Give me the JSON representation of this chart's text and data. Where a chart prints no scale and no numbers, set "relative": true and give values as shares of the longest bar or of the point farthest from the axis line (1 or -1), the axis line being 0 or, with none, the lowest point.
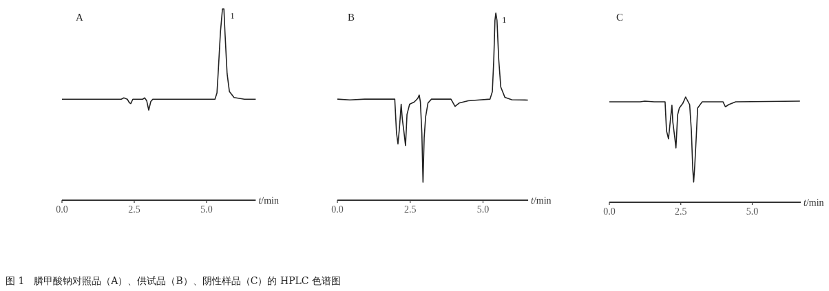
{
  "chart_data": [
    {
      "type": "line",
      "title": "A",
      "relative": true,
      "xlabel": "*t*/min",
      "xlim": [
        0,
        6.7
      ],
      "xticks": [
        {
          "value": 0,
          "label": "0.0"
        },
        {
          "value": 2.5,
          "label": "2.5"
        },
        {
          "value": 5,
          "label": "5.0"
        }
      ],
      "color": "#222222",
      "marker": "none",
      "x": [
        0,
        2.05,
        2.14,
        2.26,
        2.33,
        2.38,
        2.45,
        2.79,
        2.86,
        2.93,
        3.0,
        3.07,
        3.14,
        5.29,
        5.36,
        5.4,
        5.48,
        5.55,
        5.6,
        5.64,
        5.71,
        5.79,
        5.95,
        6.31,
        6.7
      ],
      "values": [
        0.528,
        0.528,
        0.535,
        0.528,
        0.51,
        0.505,
        0.528,
        0.528,
        0.535,
        0.52,
        0.471,
        0.515,
        0.528,
        0.528,
        0.561,
        0.662,
        0.879,
        1.0,
        1.0,
        0.867,
        0.662,
        0.568,
        0.537,
        0.528,
        0.528
      ],
      "annotations": [
        {
          "text": "1",
          "x": 5.6,
          "y": 1.0
        },
        "图 1　膦甲酸钠对照品（A）、供试品（B）、阴性样品（C）的 HPLC 色谱图"
      ]
    },
    {
      "type": "line",
      "title": "B",
      "relative": true,
      "xlabel": "*t*/min",
      "xlim": [
        0,
        6.55
      ],
      "xticks": [
        {
          "value": 0,
          "label": "0.0"
        },
        {
          "value": 2.5,
          "label": "2.5"
        },
        {
          "value": 5,
          "label": "5.0"
        }
      ],
      "color": "#222222",
      "marker": "none",
      "x": [
        0,
        0.43,
        0.94,
        1.97,
        2.03,
        2.08,
        2.13,
        2.19,
        2.23,
        2.28,
        2.34,
        2.39,
        2.48,
        2.64,
        2.76,
        2.81,
        2.85,
        2.9,
        2.94,
        2.98,
        3.03,
        3.11,
        3.23,
        3.9,
        4.04,
        4.18,
        4.49,
        4.8,
        5.24,
        5.32,
        5.37,
        5.41,
        5.44,
        5.48,
        5.54,
        5.61,
        5.75,
        5.99,
        6.54
      ],
      "values": [
        0.54,
        0.536,
        0.54,
        0.54,
        0.36,
        0.301,
        0.384,
        0.513,
        0.433,
        0.372,
        0.292,
        0.458,
        0.513,
        0.525,
        0.544,
        0.562,
        0.525,
        0.36,
        0.096,
        0.335,
        0.445,
        0.519,
        0.54,
        0.54,
        0.501,
        0.519,
        0.531,
        0.535,
        0.54,
        0.58,
        0.752,
        0.961,
        1.0,
        0.961,
        0.752,
        0.605,
        0.55,
        0.537,
        0.535
      ],
      "annotations": [
        {
          "text": "1",
          "x": 5.44,
          "y": 1.0
        }
      ]
    },
    {
      "type": "line",
      "title": "C",
      "relative": true,
      "xlabel": "*t*/min",
      "xlim": [
        0,
        6.7
      ],
      "xticks": [
        {
          "value": 0,
          "label": "0.0"
        },
        {
          "value": 2.5,
          "label": "2.5"
        },
        {
          "value": 5,
          "label": "5.0"
        }
      ],
      "color": "#222222",
      "marker": "none",
      "x": [
        0,
        1.08,
        1.24,
        1.57,
        1.95,
        2.0,
        2.07,
        2.13,
        2.19,
        2.22,
        2.29,
        2.33,
        2.39,
        2.45,
        2.57,
        2.67,
        2.81,
        2.87,
        2.92,
        2.95,
        2.99,
        3.04,
        3.09,
        3.25,
        3.98,
        4.06,
        4.18,
        4.42,
        6.67
      ],
      "values": [
        0.954,
        0.954,
        0.961,
        0.954,
        0.954,
        0.679,
        0.603,
        0.766,
        0.922,
        0.766,
        0.614,
        0.516,
        0.831,
        0.896,
        0.939,
        1.0,
        0.928,
        0.679,
        0.31,
        0.191,
        0.353,
        0.614,
        0.896,
        0.954,
        0.954,
        0.907,
        0.928,
        0.954,
        0.961
      ]
    }
  ]
}
